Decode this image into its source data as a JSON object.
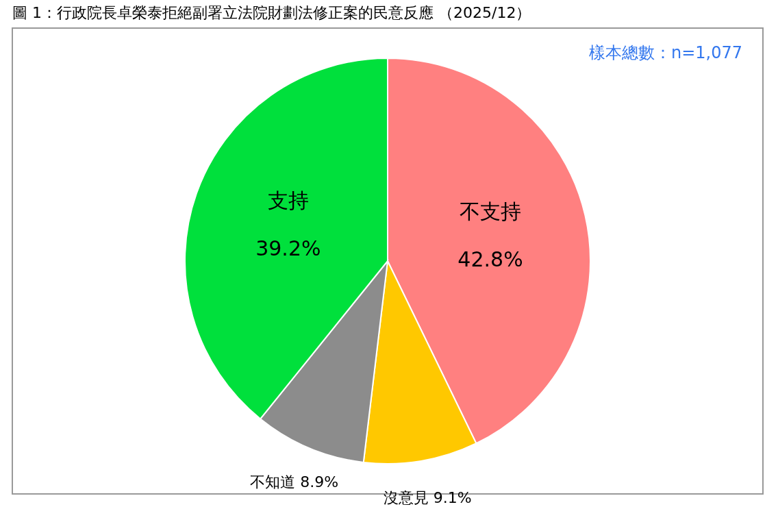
{
  "chart_data": {
    "type": "pie",
    "title": "圖 1：行政院長卓榮泰拒絕副署立法院財劃法修正案的民意反應 （2025/12）",
    "categories": [
      "不支持",
      "沒意見",
      "不知道",
      "支持"
    ],
    "values": [
      42.8,
      9.1,
      8.9,
      39.2
    ],
    "colors": [
      "#ff8080",
      "#ffc800",
      "#8c8c8c",
      "#00e03c"
    ],
    "value_labels": [
      "42.8%",
      "9.1%",
      "8.9%",
      "39.2%"
    ],
    "annotations": [
      "樣本總數：n=1,077"
    ],
    "legend": false
  }
}
